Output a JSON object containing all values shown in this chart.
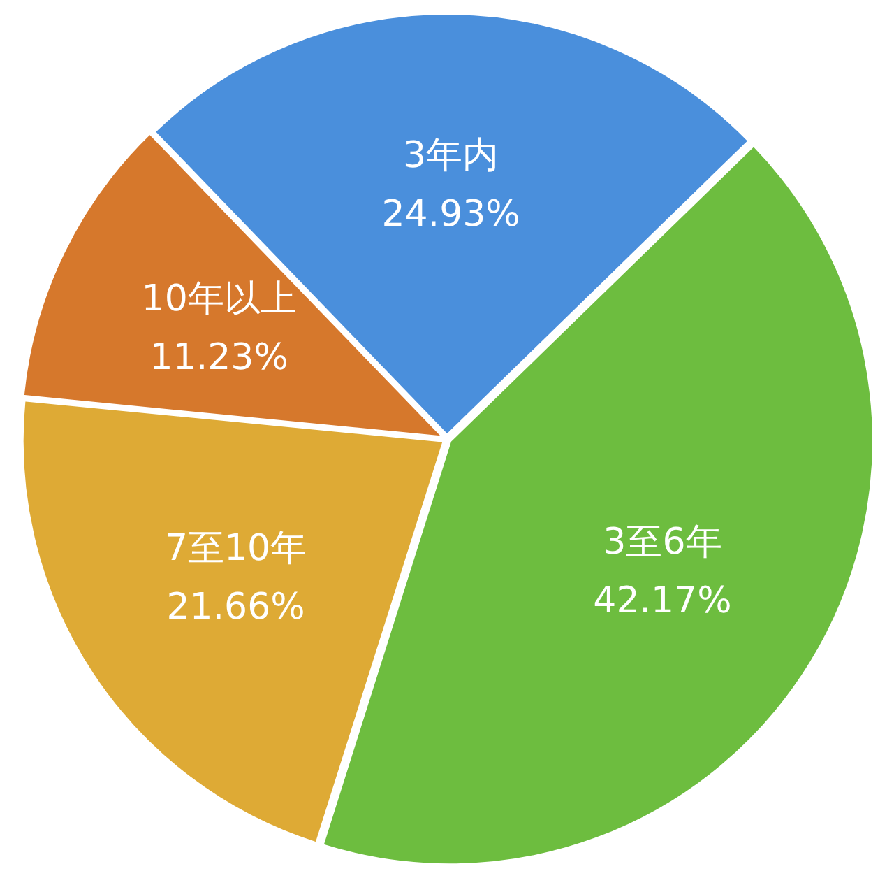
{
  "chart_data": {
    "type": "pie",
    "categories": [
      "3年内",
      "3至6年",
      "7至10年",
      "10年以上"
    ],
    "values": [
      24.93,
      42.17,
      21.66,
      11.23
    ],
    "colors": [
      "#4a8fdc",
      "#6dbd3f",
      "#deaa35",
      "#d6782c"
    ],
    "value_labels": [
      "24.93%",
      "42.17%",
      "21.66%",
      "11.23%"
    ]
  }
}
